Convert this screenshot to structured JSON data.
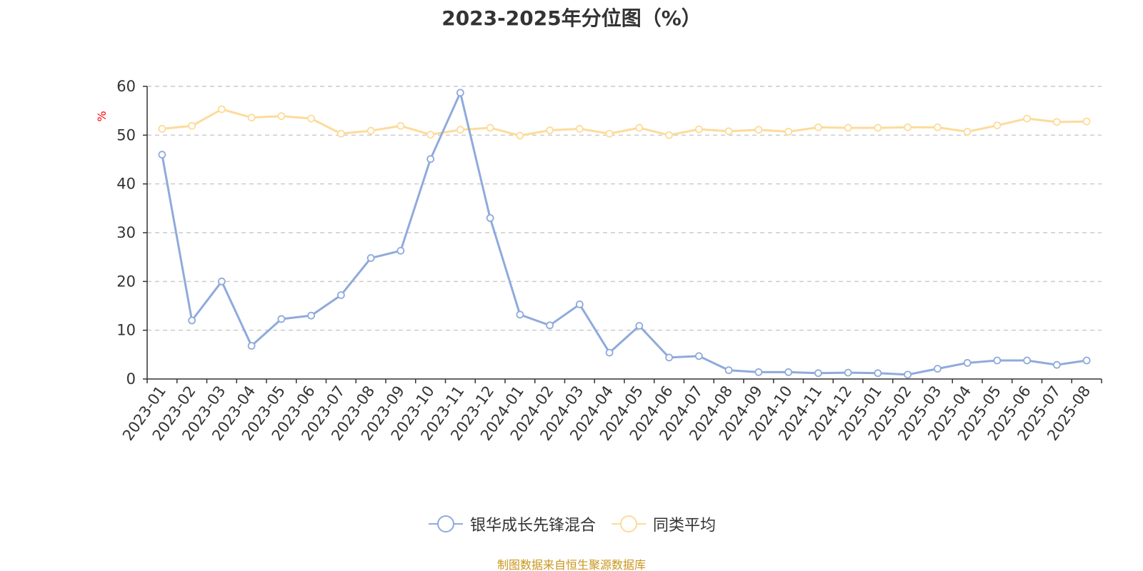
{
  "chart_data": {
    "type": "line",
    "title": "2023-2025年分位图（%）",
    "xlabel": "",
    "ylabel": "%",
    "ylim": [
      0,
      60
    ],
    "yticks": [
      "0",
      "10",
      "20",
      "30",
      "40",
      "50",
      "60"
    ],
    "grid": true,
    "legend_position": "bottom",
    "categories": [
      "2023-01",
      "2023-02",
      "2023-03",
      "2023-04",
      "2023-05",
      "2023-06",
      "2023-07",
      "2023-08",
      "2023-09",
      "2023-10",
      "2023-11",
      "2023-12",
      "2024-01",
      "2024-02",
      "2024-03",
      "2024-04",
      "2024-05",
      "2024-06",
      "2024-07",
      "2024-08",
      "2024-09",
      "2024-10",
      "2024-11",
      "2024-12",
      "2025-01",
      "2025-02",
      "2025-03",
      "2025-04",
      "2025-05",
      "2025-06",
      "2025-07",
      "2025-08"
    ],
    "series": [
      {
        "name": "银华成长先锋混合",
        "color": "#8faadc",
        "values": [
          46.0,
          12.0,
          20.0,
          6.8,
          12.3,
          13.0,
          17.2,
          24.8,
          26.3,
          45.1,
          58.7,
          33.0,
          13.2,
          11.0,
          15.3,
          5.4,
          10.9,
          4.4,
          4.7,
          1.8,
          1.4,
          1.4,
          1.2,
          1.3,
          1.2,
          0.9,
          2.1,
          3.3,
          3.8,
          3.8,
          2.9,
          3.8
        ]
      },
      {
        "name": "同类平均",
        "color": "#fddb9a",
        "values": [
          51.3,
          51.9,
          55.3,
          53.6,
          53.9,
          53.4,
          50.3,
          50.9,
          51.9,
          50.1,
          51.1,
          51.5,
          49.9,
          51.0,
          51.3,
          50.3,
          51.5,
          50.0,
          51.2,
          50.8,
          51.1,
          50.7,
          51.6,
          51.5,
          51.5,
          51.6,
          51.6,
          50.7,
          52.0,
          53.4,
          52.7,
          52.8
        ]
      }
    ]
  },
  "source_note": "制图数据来自恒生聚源数据库"
}
